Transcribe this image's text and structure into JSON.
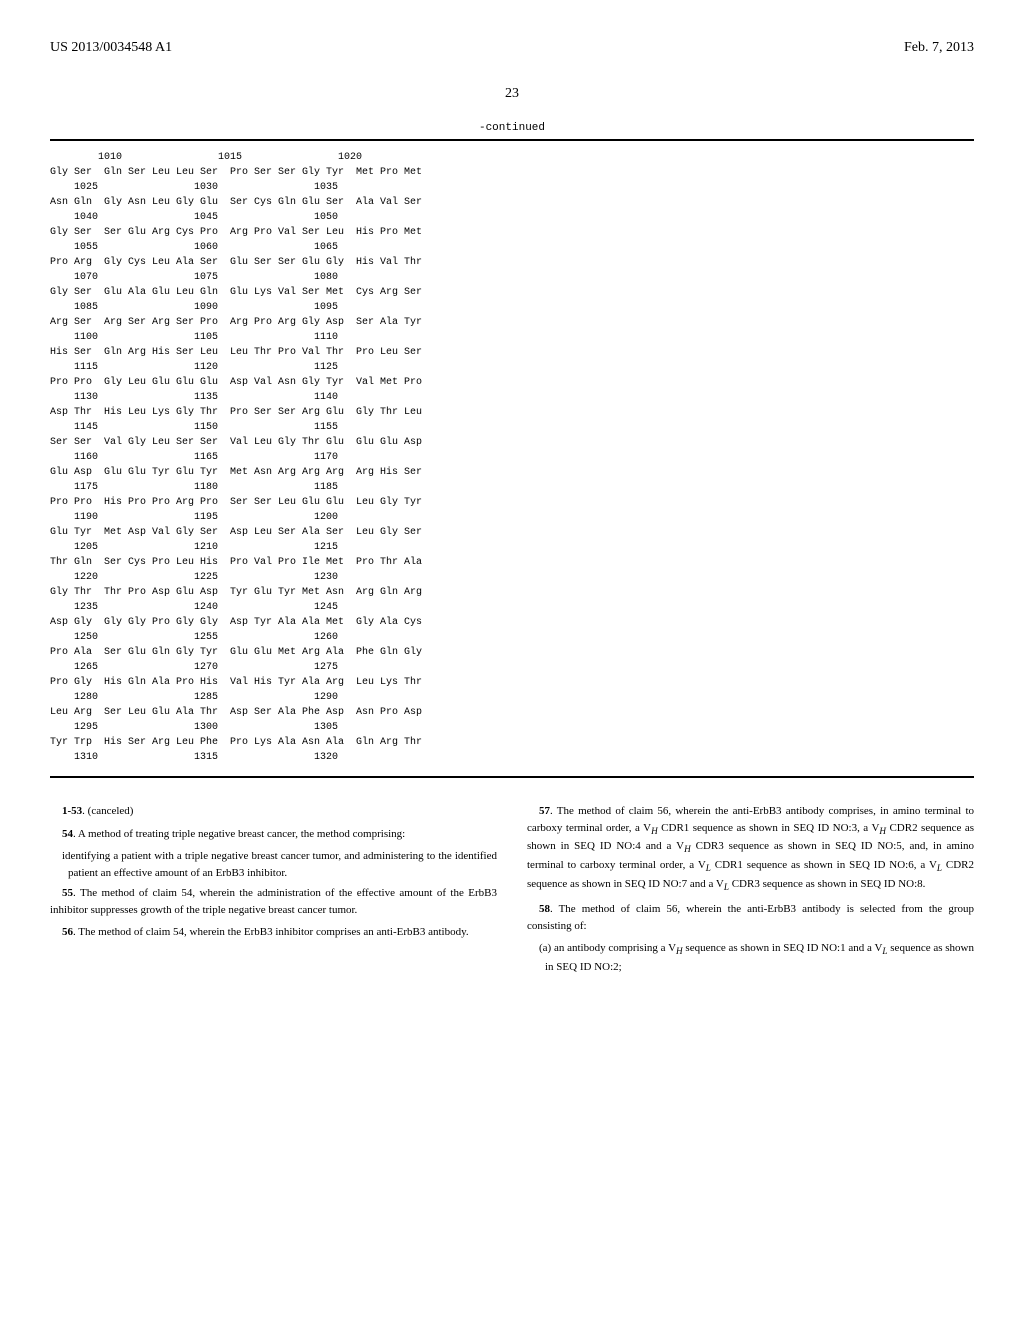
{
  "header": {
    "docNumber": "US 2013/0034548 A1",
    "date": "Feb. 7, 2013"
  },
  "pageNumber": "23",
  "continuedLabel": "-continued",
  "sequenceRows": [
    "        1010                1015                1020",
    "",
    "Gly Ser  Gln Ser Leu Leu Ser  Pro Ser Ser Gly Tyr  Met Pro Met",
    "    1025                1030                1035",
    "",
    "Asn Gln  Gly Asn Leu Gly Glu  Ser Cys Gln Glu Ser  Ala Val Ser",
    "    1040                1045                1050",
    "",
    "Gly Ser  Ser Glu Arg Cys Pro  Arg Pro Val Ser Leu  His Pro Met",
    "    1055                1060                1065",
    "",
    "Pro Arg  Gly Cys Leu Ala Ser  Glu Ser Ser Glu Gly  His Val Thr",
    "    1070                1075                1080",
    "",
    "Gly Ser  Glu Ala Glu Leu Gln  Glu Lys Val Ser Met  Cys Arg Ser",
    "    1085                1090                1095",
    "",
    "Arg Ser  Arg Ser Arg Ser Pro  Arg Pro Arg Gly Asp  Ser Ala Tyr",
    "    1100                1105                1110",
    "",
    "His Ser  Gln Arg His Ser Leu  Leu Thr Pro Val Thr  Pro Leu Ser",
    "    1115                1120                1125",
    "",
    "Pro Pro  Gly Leu Glu Glu Glu  Asp Val Asn Gly Tyr  Val Met Pro",
    "    1130                1135                1140",
    "",
    "Asp Thr  His Leu Lys Gly Thr  Pro Ser Ser Arg Glu  Gly Thr Leu",
    "    1145                1150                1155",
    "",
    "Ser Ser  Val Gly Leu Ser Ser  Val Leu Gly Thr Glu  Glu Glu Asp",
    "    1160                1165                1170",
    "",
    "Glu Asp  Glu Glu Tyr Glu Tyr  Met Asn Arg Arg Arg  Arg His Ser",
    "    1175                1180                1185",
    "",
    "Pro Pro  His Pro Pro Arg Pro  Ser Ser Leu Glu Glu  Leu Gly Tyr",
    "    1190                1195                1200",
    "",
    "Glu Tyr  Met Asp Val Gly Ser  Asp Leu Ser Ala Ser  Leu Gly Ser",
    "    1205                1210                1215",
    "",
    "Thr Gln  Ser Cys Pro Leu His  Pro Val Pro Ile Met  Pro Thr Ala",
    "    1220                1225                1230",
    "",
    "Gly Thr  Thr Pro Asp Glu Asp  Tyr Glu Tyr Met Asn  Arg Gln Arg",
    "    1235                1240                1245",
    "",
    "Asp Gly  Gly Gly Pro Gly Gly  Asp Tyr Ala Ala Met  Gly Ala Cys",
    "    1250                1255                1260",
    "",
    "Pro Ala  Ser Glu Gln Gly Tyr  Glu Glu Met Arg Ala  Phe Gln Gly",
    "    1265                1270                1275",
    "",
    "Pro Gly  His Gln Ala Pro His  Val His Tyr Ala Arg  Leu Lys Thr",
    "    1280                1285                1290",
    "",
    "Leu Arg  Ser Leu Glu Ala Thr  Asp Ser Ala Phe Asp  Asn Pro Asp",
    "    1295                1300                1305",
    "",
    "Tyr Trp  His Ser Arg Leu Phe  Pro Lys Ala Asn Ala  Gln Arg Thr",
    "    1310                1315                1320"
  ],
  "claims": {
    "leftColumn": [
      {
        "type": "para",
        "text": "1-53. (canceled)"
      },
      {
        "type": "para",
        "text": "54. A method of treating triple negative breast cancer, the method comprising:"
      },
      {
        "type": "sub",
        "text": "identifying a patient with a triple negative breast cancer tumor, and administering to the identified patient an effective amount of an ErbB3 inhibitor."
      },
      {
        "type": "para",
        "text": "55. The method of claim 54, wherein the administration of the effective amount of the ErbB3 inhibitor suppresses growth of the triple negative breast cancer tumor."
      },
      {
        "type": "para",
        "text": "56. The method of claim 54, wherein the ErbB3 inhibitor comprises an anti-ErbB3 antibody."
      }
    ],
    "rightColumn": [
      {
        "type": "para",
        "text": "57. The method of claim 56, wherein the anti-ErbB3 antibody comprises, in amino terminal to carboxy terminal order, a V_H CDR1 sequence as shown in SEQ ID NO:3, a V_H CDR2 sequence as shown in SEQ ID NO:4 and a V_H CDR3 sequence as shown in SEQ ID NO:5, and, in amino terminal to carboxy terminal order, a V_L CDR1 sequence as shown in SEQ ID NO:6, a V_L CDR2 sequence as shown in SEQ ID NO:7 and a V_L CDR3 sequence as shown in SEQ ID NO:8."
      },
      {
        "type": "para",
        "text": "58. The method of claim 56, wherein the anti-ErbB3 antibody is selected from the group consisting of:"
      },
      {
        "type": "sub",
        "text": "(a) an antibody comprising a V_H sequence as shown in SEQ ID NO:1 and a V_L sequence as shown in SEQ ID NO:2;"
      }
    ]
  }
}
